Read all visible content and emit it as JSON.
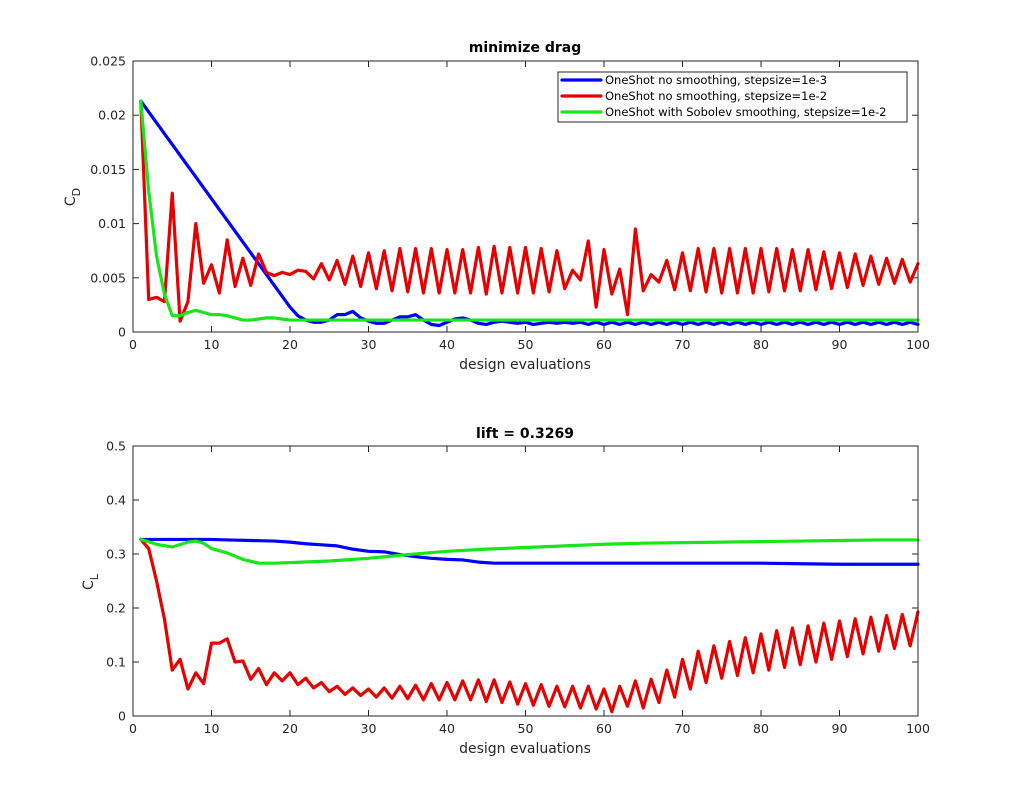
{
  "colors": {
    "blue": "#0000ff",
    "red": "#e60000",
    "green": "#19e619"
  },
  "chart_data": [
    {
      "type": "line",
      "id": "top",
      "title": "minimize drag",
      "xlabel": "design evaluations",
      "ylabel_main": "C",
      "ylabel_sub": "D",
      "xlim": [
        0,
        100
      ],
      "ylim": [
        0,
        0.025
      ],
      "xticks": [
        0,
        10,
        20,
        30,
        40,
        50,
        60,
        70,
        80,
        90,
        100
      ],
      "xtick_labels": [
        "0",
        "10",
        "20",
        "30",
        "40",
        "50",
        "60",
        "70",
        "80",
        "90",
        "100"
      ],
      "yticks": [
        0,
        0.005,
        0.01,
        0.015,
        0.02,
        0.025
      ],
      "ytick_labels": [
        "0",
        "0.005",
        "0.01",
        "0.015",
        "0.02",
        "0.025"
      ],
      "legend_position": "top-right",
      "series": [
        {
          "name": "OneShot no smoothing, stepsize=1e-3",
          "color_key": "blue",
          "x": [
            1,
            2,
            3,
            4,
            5,
            6,
            7,
            8,
            9,
            10,
            11,
            12,
            13,
            14,
            15,
            16,
            17,
            18,
            19,
            20,
            21,
            22,
            23,
            24,
            25,
            26,
            27,
            28,
            29,
            30,
            31,
            32,
            33,
            34,
            35,
            36,
            37,
            38,
            39,
            40,
            41,
            42,
            43,
            44,
            45,
            46,
            47,
            48,
            49,
            50,
            51,
            52,
            53,
            54,
            55,
            56,
            57,
            58,
            59,
            60,
            61,
            62,
            63,
            64,
            65,
            66,
            67,
            68,
            69,
            70,
            71,
            72,
            73,
            74,
            75,
            76,
            77,
            78,
            79,
            80,
            81,
            82,
            83,
            84,
            85,
            86,
            87,
            88,
            89,
            90,
            91,
            92,
            93,
            94,
            95,
            96,
            97,
            98,
            99,
            100
          ],
          "y": [
            0.0213,
            0.0203,
            0.0193,
            0.0183,
            0.0173,
            0.0163,
            0.0153,
            0.0143,
            0.0133,
            0.0123,
            0.0113,
            0.0103,
            0.0093,
            0.0083,
            0.0073,
            0.0063,
            0.0053,
            0.0043,
            0.0033,
            0.0023,
            0.0015,
            0.0011,
            0.0009,
            0.0009,
            0.0011,
            0.0016,
            0.0016,
            0.0019,
            0.0013,
            0.001,
            0.0008,
            0.0008,
            0.0011,
            0.0014,
            0.0014,
            0.0016,
            0.0011,
            0.0007,
            0.0006,
            0.0009,
            0.0012,
            0.0013,
            0.0011,
            0.0008,
            0.0007,
            0.0009,
            0.001,
            0.0009,
            0.0008,
            0.0009,
            0.0007,
            0.0008,
            0.0009,
            0.0008,
            0.0009,
            0.0008,
            0.0009,
            0.0007,
            0.0009,
            0.0007,
            0.0009,
            0.0007,
            0.0009,
            0.0007,
            0.0009,
            0.0007,
            0.0009,
            0.0007,
            0.0009,
            0.0007,
            0.0009,
            0.0007,
            0.0009,
            0.0007,
            0.0009,
            0.0007,
            0.0009,
            0.0007,
            0.0009,
            0.0007,
            0.0009,
            0.0007,
            0.0009,
            0.0007,
            0.0009,
            0.0007,
            0.0009,
            0.0007,
            0.0009,
            0.0007,
            0.0009,
            0.0007,
            0.0009,
            0.0007,
            0.0009,
            0.0007,
            0.0009,
            0.0007,
            0.0009,
            0.0007
          ]
        },
        {
          "name": "OneShot no smoothing, stepsize=1e-2",
          "color_key": "red",
          "x": [
            1,
            2,
            3,
            4,
            5,
            6,
            7,
            8,
            9,
            10,
            11,
            12,
            13,
            14,
            15,
            16,
            17,
            18,
            19,
            20,
            21,
            22,
            23,
            24,
            25,
            26,
            27,
            28,
            29,
            30,
            31,
            32,
            33,
            34,
            35,
            36,
            37,
            38,
            39,
            40,
            41,
            42,
            43,
            44,
            45,
            46,
            47,
            48,
            49,
            50,
            51,
            52,
            53,
            54,
            55,
            56,
            57,
            58,
            59,
            60,
            61,
            62,
            63,
            64,
            65,
            66,
            67,
            68,
            69,
            70,
            71,
            72,
            73,
            74,
            75,
            76,
            77,
            78,
            79,
            80,
            81,
            82,
            83,
            84,
            85,
            86,
            87,
            88,
            89,
            90,
            91,
            92,
            93,
            94,
            95,
            96,
            97,
            98,
            99,
            100
          ],
          "y": [
            0.0213,
            0.003,
            0.0032,
            0.0028,
            0.0128,
            0.001,
            0.0028,
            0.01,
            0.0045,
            0.0062,
            0.0036,
            0.0085,
            0.0042,
            0.0068,
            0.0043,
            0.0072,
            0.0055,
            0.0052,
            0.0055,
            0.0053,
            0.0057,
            0.0056,
            0.0049,
            0.0063,
            0.0048,
            0.0066,
            0.0044,
            0.007,
            0.0042,
            0.0073,
            0.004,
            0.0075,
            0.0038,
            0.0077,
            0.0037,
            0.0077,
            0.0036,
            0.0077,
            0.0036,
            0.0076,
            0.0036,
            0.0076,
            0.0036,
            0.0078,
            0.0035,
            0.0079,
            0.0036,
            0.0078,
            0.0036,
            0.0078,
            0.0036,
            0.0077,
            0.0037,
            0.0075,
            0.004,
            0.0057,
            0.0048,
            0.0084,
            0.0023,
            0.0076,
            0.0035,
            0.0058,
            0.0016,
            0.0095,
            0.0038,
            0.0053,
            0.0046,
            0.0066,
            0.0039,
            0.0073,
            0.0038,
            0.0077,
            0.0037,
            0.0077,
            0.0036,
            0.0077,
            0.0036,
            0.0077,
            0.0036,
            0.0077,
            0.0037,
            0.0077,
            0.0038,
            0.0076,
            0.0038,
            0.0076,
            0.0039,
            0.0074,
            0.004,
            0.0073,
            0.0041,
            0.0072,
            0.0043,
            0.007,
            0.0044,
            0.0068,
            0.0045,
            0.0067,
            0.0046,
            0.0063
          ]
        },
        {
          "name": "OneShot with Sobolev smoothing,  stepsize=1e-2",
          "color_key": "green",
          "x": [
            1,
            2,
            3,
            4,
            5,
            6,
            7,
            8,
            9,
            10,
            11,
            12,
            13,
            14,
            15,
            16,
            17,
            18,
            19,
            20,
            21,
            22,
            23,
            24,
            25,
            26,
            27,
            28,
            29,
            30,
            31,
            32,
            33,
            34,
            35,
            36,
            37,
            38,
            39,
            40,
            41,
            42,
            43,
            44,
            45,
            46,
            47,
            48,
            49,
            50,
            51,
            52,
            53,
            54,
            55,
            56,
            57,
            58,
            59,
            60,
            61,
            62,
            63,
            64,
            65,
            66,
            67,
            68,
            69,
            70,
            71,
            72,
            73,
            74,
            75,
            76,
            77,
            78,
            79,
            80,
            81,
            82,
            83,
            84,
            85,
            86,
            87,
            88,
            89,
            90,
            91,
            92,
            93,
            94,
            95,
            96,
            97,
            98,
            99,
            100
          ],
          "y": [
            0.0213,
            0.013,
            0.007,
            0.0035,
            0.0015,
            0.0015,
            0.0018,
            0.002,
            0.0018,
            0.0016,
            0.0016,
            0.0015,
            0.0013,
            0.0011,
            0.0011,
            0.0012,
            0.0013,
            0.0013,
            0.0012,
            0.0011,
            0.0011,
            0.0011,
            0.0011,
            0.0011,
            0.0011,
            0.0011,
            0.0011,
            0.0011,
            0.0011,
            0.0011,
            0.0011,
            0.0011,
            0.0011,
            0.0011,
            0.0011,
            0.0011,
            0.0011,
            0.0011,
            0.0011,
            0.0011,
            0.0011,
            0.0011,
            0.0011,
            0.0011,
            0.0011,
            0.0011,
            0.0011,
            0.0011,
            0.0011,
            0.0011,
            0.0011,
            0.0011,
            0.0011,
            0.0011,
            0.0011,
            0.0011,
            0.0011,
            0.0011,
            0.0011,
            0.0011,
            0.0011,
            0.0011,
            0.0011,
            0.0011,
            0.0011,
            0.0011,
            0.0011,
            0.0011,
            0.0011,
            0.0011,
            0.0011,
            0.0011,
            0.0011,
            0.0011,
            0.0011,
            0.0011,
            0.0011,
            0.0011,
            0.0011,
            0.0011,
            0.0011,
            0.0011,
            0.0011,
            0.0011,
            0.0011,
            0.0011,
            0.0011,
            0.0011,
            0.0011,
            0.0011,
            0.0011,
            0.0011,
            0.0011,
            0.0011,
            0.0011,
            0.0011,
            0.0011,
            0.0011,
            0.0011,
            0.0011
          ]
        }
      ]
    },
    {
      "type": "line",
      "id": "bottom",
      "title": "lift = 0.3269",
      "xlabel": "design evaluations",
      "ylabel_main": "C",
      "ylabel_sub": "L",
      "xlim": [
        0,
        100
      ],
      "ylim": [
        0,
        0.5
      ],
      "xticks": [
        0,
        10,
        20,
        30,
        40,
        50,
        60,
        70,
        80,
        90,
        100
      ],
      "xtick_labels": [
        "0",
        "10",
        "20",
        "30",
        "40",
        "50",
        "60",
        "70",
        "80",
        "90",
        "100"
      ],
      "yticks": [
        0,
        0.1,
        0.2,
        0.3,
        0.4,
        0.5
      ],
      "ytick_labels": [
        "0",
        "0.1",
        "0.2",
        "0.3",
        "0.4",
        "0.5"
      ],
      "series": [
        {
          "name": "OneShot no smoothing, stepsize=1e-3",
          "color_key": "blue",
          "x": [
            1,
            5,
            10,
            12,
            15,
            18,
            20,
            22,
            24,
            26,
            28,
            30,
            32,
            34,
            36,
            38,
            40,
            42,
            44,
            46,
            50,
            55,
            60,
            65,
            70,
            75,
            80,
            85,
            90,
            95,
            100
          ],
          "y": [
            0.327,
            0.327,
            0.327,
            0.326,
            0.325,
            0.324,
            0.322,
            0.319,
            0.317,
            0.315,
            0.309,
            0.305,
            0.304,
            0.299,
            0.295,
            0.292,
            0.29,
            0.289,
            0.285,
            0.283,
            0.283,
            0.283,
            0.283,
            0.283,
            0.283,
            0.283,
            0.283,
            0.282,
            0.281,
            0.281,
            0.281
          ]
        },
        {
          "name": "OneShot no smoothing, stepsize=1e-2",
          "color_key": "red",
          "x": [
            1,
            2,
            3,
            4,
            5,
            6,
            7,
            8,
            9,
            10,
            11,
            12,
            13,
            14,
            15,
            16,
            17,
            18,
            19,
            20,
            21,
            22,
            23,
            24,
            25,
            26,
            27,
            28,
            29,
            30,
            31,
            32,
            33,
            34,
            35,
            36,
            37,
            38,
            39,
            40,
            41,
            42,
            43,
            44,
            45,
            46,
            47,
            48,
            49,
            50,
            51,
            52,
            53,
            54,
            55,
            56,
            57,
            58,
            59,
            60,
            61,
            62,
            63,
            64,
            65,
            66,
            67,
            68,
            69,
            70,
            71,
            72,
            73,
            74,
            75,
            76,
            77,
            78,
            79,
            80,
            81,
            82,
            83,
            84,
            85,
            86,
            87,
            88,
            89,
            90,
            91,
            92,
            93,
            94,
            95,
            96,
            97,
            98,
            99,
            100
          ],
          "y": [
            0.327,
            0.31,
            0.25,
            0.18,
            0.085,
            0.105,
            0.05,
            0.08,
            0.06,
            0.135,
            0.135,
            0.143,
            0.1,
            0.102,
            0.068,
            0.088,
            0.058,
            0.08,
            0.065,
            0.08,
            0.058,
            0.07,
            0.052,
            0.062,
            0.045,
            0.055,
            0.04,
            0.052,
            0.038,
            0.05,
            0.035,
            0.052,
            0.033,
            0.055,
            0.032,
            0.057,
            0.03,
            0.06,
            0.03,
            0.062,
            0.03,
            0.065,
            0.03,
            0.067,
            0.027,
            0.067,
            0.025,
            0.063,
            0.022,
            0.06,
            0.02,
            0.058,
            0.018,
            0.055,
            0.017,
            0.055,
            0.015,
            0.055,
            0.013,
            0.05,
            0.008,
            0.055,
            0.018,
            0.065,
            0.015,
            0.068,
            0.025,
            0.085,
            0.035,
            0.105,
            0.05,
            0.12,
            0.062,
            0.13,
            0.07,
            0.138,
            0.075,
            0.145,
            0.08,
            0.152,
            0.085,
            0.158,
            0.09,
            0.163,
            0.095,
            0.167,
            0.1,
            0.172,
            0.105,
            0.176,
            0.11,
            0.18,
            0.115,
            0.183,
            0.12,
            0.186,
            0.125,
            0.188,
            0.13,
            0.193
          ]
        },
        {
          "name": "OneShot with Sobolev smoothing,  stepsize=1e-2",
          "color_key": "green",
          "x": [
            1,
            3,
            5,
            7,
            8,
            9,
            10,
            12,
            14,
            16,
            18,
            20,
            25,
            30,
            35,
            40,
            45,
            50,
            55,
            60,
            65,
            70,
            75,
            80,
            85,
            90,
            95,
            100
          ],
          "y": [
            0.327,
            0.318,
            0.313,
            0.322,
            0.324,
            0.32,
            0.31,
            0.302,
            0.29,
            0.283,
            0.283,
            0.284,
            0.287,
            0.292,
            0.299,
            0.305,
            0.309,
            0.312,
            0.315,
            0.318,
            0.32,
            0.321,
            0.322,
            0.323,
            0.324,
            0.325,
            0.326,
            0.326
          ]
        }
      ]
    }
  ]
}
